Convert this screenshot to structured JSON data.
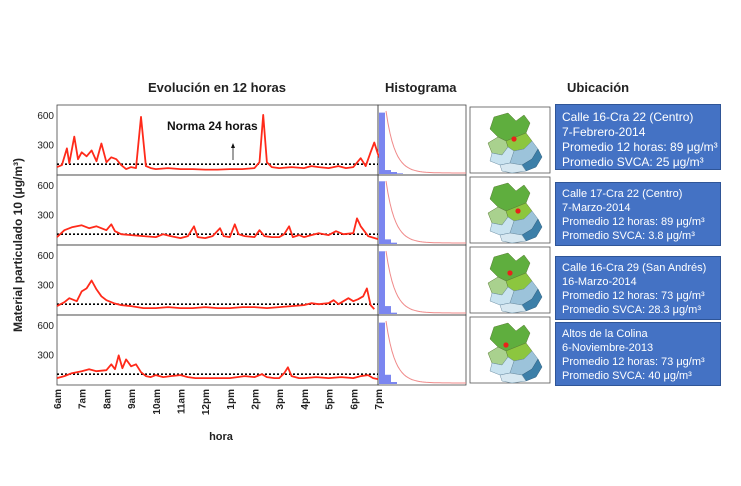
{
  "headers": {
    "evolution": "Evolución en 12 horas",
    "histogram": "Histograma",
    "location": "Ubicación"
  },
  "chart_data": {
    "type": "line",
    "ylabel": "Material particulado 10 (μg/m³)",
    "xlabel": "hora",
    "x_ticks": [
      "6am",
      "7am",
      "8am",
      "9am",
      "10am",
      "11am",
      "12pm",
      "1pm",
      "2pm",
      "3pm",
      "4pm",
      "5pm",
      "6pm",
      "7pm"
    ],
    "y_ticks": [
      300,
      600
    ],
    "ylim": [
      0,
      650
    ],
    "xlim": [
      6,
      19
    ],
    "norm_value": 100,
    "norm_label": "Norma 24 horas",
    "colors": {
      "series": "#ff2a1a",
      "norm": "#000000",
      "histogram": "#7b86f0",
      "histogram_curve": "#f08a8a"
    },
    "panels": [
      {
        "series": [
          [
            6.0,
            70
          ],
          [
            6.2,
            90
          ],
          [
            6.4,
            260
          ],
          [
            6.5,
            110
          ],
          [
            6.7,
            380
          ],
          [
            6.85,
            150
          ],
          [
            7.0,
            220
          ],
          [
            7.2,
            180
          ],
          [
            7.4,
            240
          ],
          [
            7.6,
            130
          ],
          [
            7.8,
            310
          ],
          [
            8.0,
            120
          ],
          [
            8.2,
            170
          ],
          [
            8.4,
            150
          ],
          [
            8.6,
            90
          ],
          [
            8.8,
            50
          ],
          [
            9.0,
            70
          ],
          [
            9.2,
            60
          ],
          [
            9.4,
            580
          ],
          [
            9.6,
            80
          ],
          [
            9.8,
            60
          ],
          [
            10.0,
            50
          ],
          [
            10.5,
            60
          ],
          [
            11.0,
            50
          ],
          [
            11.5,
            50
          ],
          [
            12.0,
            45
          ],
          [
            12.5,
            45
          ],
          [
            13.0,
            50
          ],
          [
            13.5,
            50
          ],
          [
            14.0,
            60
          ],
          [
            14.2,
            120
          ],
          [
            14.35,
            600
          ],
          [
            14.5,
            120
          ],
          [
            14.7,
            70
          ],
          [
            15.0,
            60
          ],
          [
            15.5,
            70
          ],
          [
            16.0,
            60
          ],
          [
            16.3,
            80
          ],
          [
            16.6,
            70
          ],
          [
            17.0,
            60
          ],
          [
            17.4,
            80
          ],
          [
            17.7,
            60
          ],
          [
            18.0,
            70
          ],
          [
            18.3,
            160
          ],
          [
            18.5,
            80
          ],
          [
            18.7,
            220
          ],
          [
            18.85,
            320
          ],
          [
            19.0,
            200
          ],
          [
            19.1,
            150
          ]
        ],
        "histogram": [
          0.93,
          0.06,
          0.03,
          0.01
        ],
        "info": [
          "Calle 16-Cra 22  (Centro)",
          "7-Febrero-2014",
          "Promedio 12 horas: 89 μg/m³",
          "Promedio SVCA: 25 μg/m³"
        ]
      },
      {
        "series": [
          [
            6.0,
            70
          ],
          [
            6.3,
            140
          ],
          [
            6.6,
            170
          ],
          [
            7.0,
            190
          ],
          [
            7.3,
            160
          ],
          [
            7.6,
            180
          ],
          [
            8.0,
            140
          ],
          [
            8.2,
            200
          ],
          [
            8.35,
            130
          ],
          [
            8.6,
            100
          ],
          [
            9.0,
            90
          ],
          [
            9.5,
            80
          ],
          [
            10.0,
            70
          ],
          [
            10.3,
            100
          ],
          [
            10.6,
            80
          ],
          [
            11.0,
            60
          ],
          [
            11.3,
            80
          ],
          [
            11.55,
            180
          ],
          [
            11.7,
            70
          ],
          [
            12.0,
            60
          ],
          [
            12.3,
            80
          ],
          [
            12.6,
            160
          ],
          [
            12.75,
            80
          ],
          [
            13.0,
            70
          ],
          [
            13.2,
            200
          ],
          [
            13.35,
            100
          ],
          [
            13.6,
            80
          ],
          [
            14.0,
            70
          ],
          [
            14.2,
            140
          ],
          [
            14.4,
            80
          ],
          [
            14.7,
            70
          ],
          [
            15.0,
            70
          ],
          [
            15.2,
            100
          ],
          [
            15.4,
            180
          ],
          [
            15.55,
            70
          ],
          [
            15.8,
            90
          ],
          [
            16.0,
            70
          ],
          [
            16.3,
            90
          ],
          [
            16.6,
            110
          ],
          [
            17.0,
            90
          ],
          [
            17.3,
            130
          ],
          [
            17.6,
            100
          ],
          [
            18.0,
            110
          ],
          [
            18.15,
            260
          ],
          [
            18.3,
            180
          ],
          [
            18.6,
            80
          ],
          [
            19.0,
            50
          ]
        ],
        "histogram": [
          0.95,
          0.07,
          0.02
        ],
        "info": [
          "Calle 17-Cra 22 (Centro)",
          "7-Marzo-2014",
          "Promedio 12 horas: 89 μg/m³",
          "Promedio SVCA: 3.8 μg/m³"
        ]
      },
      {
        "series": [
          [
            6.0,
            80
          ],
          [
            6.3,
            120
          ],
          [
            6.5,
            160
          ],
          [
            6.8,
            130
          ],
          [
            7.0,
            230
          ],
          [
            7.2,
            260
          ],
          [
            7.4,
            340
          ],
          [
            7.6,
            250
          ],
          [
            7.8,
            180
          ],
          [
            8.0,
            140
          ],
          [
            8.3,
            110
          ],
          [
            8.6,
            90
          ],
          [
            9.0,
            80
          ],
          [
            9.5,
            60
          ],
          [
            10.0,
            60
          ],
          [
            10.5,
            70
          ],
          [
            11.0,
            60
          ],
          [
            11.5,
            60
          ],
          [
            12.0,
            70
          ],
          [
            12.5,
            60
          ],
          [
            13.0,
            60
          ],
          [
            13.5,
            70
          ],
          [
            14.0,
            70
          ],
          [
            14.5,
            60
          ],
          [
            15.0,
            70
          ],
          [
            15.5,
            80
          ],
          [
            16.0,
            90
          ],
          [
            16.3,
            110
          ],
          [
            16.6,
            100
          ],
          [
            17.0,
            110
          ],
          [
            17.2,
            140
          ],
          [
            17.4,
            100
          ],
          [
            17.6,
            130
          ],
          [
            17.8,
            160
          ],
          [
            18.0,
            130
          ],
          [
            18.2,
            150
          ],
          [
            18.4,
            180
          ],
          [
            18.55,
            260
          ],
          [
            18.7,
            90
          ],
          [
            18.85,
            50
          ]
        ],
        "histogram": [
          0.95,
          0.12,
          0.02
        ],
        "info": [
          "Calle 16-Cra 29 (San Andrés)",
          "16-Marzo-2014",
          "Promedio 12 horas: 73 μg/m³",
          "Promedio SVCA: 28.3 μg/m³"
        ]
      },
      {
        "series": [
          [
            6.0,
            60
          ],
          [
            6.3,
            80
          ],
          [
            6.6,
            110
          ],
          [
            7.0,
            130
          ],
          [
            7.3,
            150
          ],
          [
            7.6,
            130
          ],
          [
            8.0,
            140
          ],
          [
            8.2,
            200
          ],
          [
            8.35,
            150
          ],
          [
            8.5,
            290
          ],
          [
            8.65,
            160
          ],
          [
            8.8,
            250
          ],
          [
            9.0,
            180
          ],
          [
            9.2,
            200
          ],
          [
            9.4,
            120
          ],
          [
            9.6,
            80
          ],
          [
            9.8,
            70
          ],
          [
            10.0,
            90
          ],
          [
            10.3,
            70
          ],
          [
            10.6,
            80
          ],
          [
            11.0,
            90
          ],
          [
            11.3,
            70
          ],
          [
            11.6,
            60
          ],
          [
            12.0,
            60
          ],
          [
            12.5,
            60
          ],
          [
            13.0,
            60
          ],
          [
            13.3,
            70
          ],
          [
            13.6,
            80
          ],
          [
            14.0,
            70
          ],
          [
            14.3,
            100
          ],
          [
            14.5,
            70
          ],
          [
            14.8,
            60
          ],
          [
            15.0,
            60
          ],
          [
            15.2,
            110
          ],
          [
            15.35,
            170
          ],
          [
            15.5,
            80
          ],
          [
            15.8,
            60
          ],
          [
            16.0,
            60
          ],
          [
            16.5,
            70
          ],
          [
            17.0,
            60
          ],
          [
            17.5,
            70
          ],
          [
            18.0,
            60
          ],
          [
            18.3,
            80
          ],
          [
            18.6,
            90
          ],
          [
            18.8,
            60
          ],
          [
            19.0,
            50
          ]
        ],
        "histogram": [
          0.93,
          0.14,
          0.03
        ],
        "info": [
          "Altos de la Colina",
          "6-Noviembre-2013",
          "Promedio 12 horas: 73 μg/m³",
          "Promedio SVCA: 40 μg/m³"
        ]
      }
    ]
  },
  "map": {
    "fill_colors": [
      "#5fae3e",
      "#8cc63f",
      "#a9d18e",
      "#c9e3f0",
      "#9cc3da",
      "#3d7fa8",
      "#d7e8f1"
    ],
    "marker_color": "#e8231a"
  }
}
